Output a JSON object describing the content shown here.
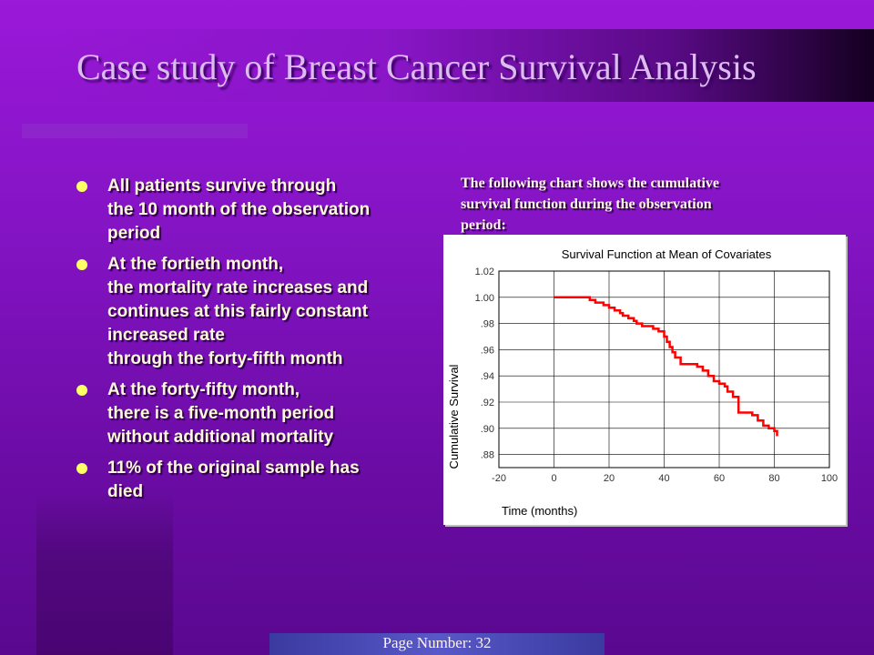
{
  "slide": {
    "title": "Case study of Breast Cancer Survival Analysis",
    "bullets": [
      "All patients survive through\nthe 10 month of the observation\nperiod",
      "At the fortieth month,\nthe mortality rate increases and\ncontinues at this fairly constant\nincreased rate\nthrough the forty-fifth month",
      "At the forty-fifty month,\nthere is a five-month period\nwithout additional mortality",
      "11% of the original sample has\ndied"
    ],
    "caption": "The following chart shows the cumulative\n              survival function during the observation\nperiod:",
    "page_number": "Page Number: 32"
  },
  "colors": {
    "background": "#8414c4",
    "title_text": "#dcbcf0",
    "bullet_dot": "#ffff66",
    "survival_line": "#ff0000"
  },
  "icons": {
    "bullet": "yellow-dot"
  },
  "chart_data": {
    "type": "line",
    "title": "Survival Function at Mean of Covariates",
    "xlabel": "Time (months)",
    "ylabel": "Cumulative Survival",
    "xlim": [
      -20,
      100
    ],
    "ylim": [
      0.87,
      1.02
    ],
    "x_ticks": [
      "-20",
      "0",
      "20",
      "40",
      "60",
      "80",
      "100"
    ],
    "x_tick_values": [
      -20,
      0,
      20,
      40,
      60,
      80,
      100
    ],
    "y_ticks": [
      "1.02",
      "1.00",
      ".98",
      ".96",
      ".94",
      ".92",
      ".90",
      ".88"
    ],
    "y_tick_values": [
      1.02,
      1.0,
      0.98,
      0.96,
      0.94,
      0.92,
      0.9,
      0.88
    ],
    "grid": true,
    "series": [
      {
        "step": true,
        "x": [
          0,
          12,
          13,
          15,
          18,
          20,
          22,
          24,
          25,
          27,
          29,
          30,
          32,
          36,
          38,
          40,
          41,
          42,
          43,
          44,
          46,
          52,
          54,
          56,
          58,
          60,
          62,
          63,
          65,
          67,
          72,
          74,
          76,
          78,
          80,
          81
        ],
        "y": [
          1.0,
          1.0,
          0.998,
          0.996,
          0.994,
          0.992,
          0.99,
          0.988,
          0.986,
          0.984,
          0.982,
          0.98,
          0.978,
          0.976,
          0.974,
          0.97,
          0.966,
          0.962,
          0.958,
          0.954,
          0.949,
          0.947,
          0.944,
          0.94,
          0.936,
          0.934,
          0.932,
          0.928,
          0.924,
          0.912,
          0.91,
          0.906,
          0.902,
          0.9,
          0.898,
          0.894
        ]
      }
    ]
  }
}
